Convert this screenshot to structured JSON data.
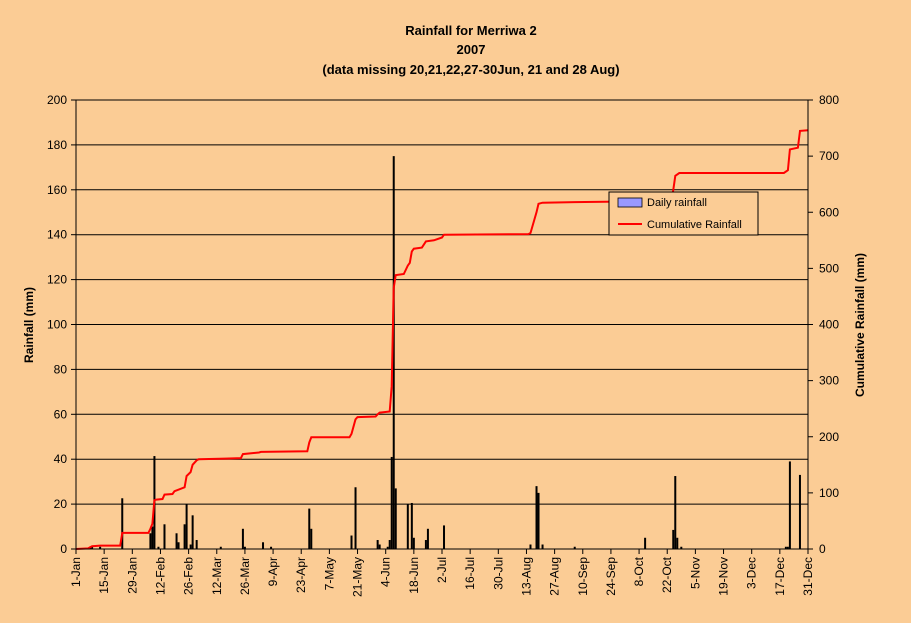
{
  "chart_data": {
    "type": "bar",
    "title_lines": [
      "Rainfall for Merriwa 2",
      "2007",
      "(data missing 20,21,22,27-30Jun, 21 and 28 Aug)"
    ],
    "ylabel": "Rainfall (mm)",
    "y2label": "Cumulative Rainfall (mm)",
    "ylim": [
      0,
      200
    ],
    "y2lim": [
      0,
      800
    ],
    "yticks": [
      0,
      20,
      40,
      60,
      80,
      100,
      120,
      140,
      160,
      180,
      200
    ],
    "y2ticks": [
      0,
      100,
      200,
      300,
      400,
      500,
      600,
      700,
      800
    ],
    "xlim_day": [
      1,
      365
    ],
    "xtick_labels": [
      "1-Jan",
      "15-Jan",
      "29-Jan",
      "12-Feb",
      "26-Feb",
      "12-Mar",
      "26-Mar",
      "9-Apr",
      "23-Apr",
      "7-May",
      "21-May",
      "4-Jun",
      "18-Jun",
      "2-Jul",
      "16-Jul",
      "30-Jul",
      "13-Aug",
      "27-Aug",
      "10-Sep",
      "24-Sep",
      "8-Oct",
      "22-Oct",
      "5-Nov",
      "19-Nov",
      "3-Dec",
      "17-Dec",
      "31-Dec"
    ],
    "grid": "horizontal",
    "legend_position": "right",
    "colors": {
      "background": "#fbcc95",
      "bars": "#000000",
      "line": "#ff0000",
      "legend_bar": "#9999ff",
      "grid": "#000000"
    },
    "series": [
      {
        "name": "Daily rainfall",
        "type": "bar",
        "points": [
          {
            "day": 8,
            "value": 1
          },
          {
            "day": 9,
            "value": 1
          },
          {
            "day": 13,
            "value": 1
          },
          {
            "day": 24,
            "value": 22.6
          },
          {
            "day": 38,
            "value": 7
          },
          {
            "day": 39,
            "value": 10
          },
          {
            "day": 40,
            "value": 41.4
          },
          {
            "day": 42,
            "value": 1
          },
          {
            "day": 45,
            "value": 11
          },
          {
            "day": 51,
            "value": 7
          },
          {
            "day": 52,
            "value": 3
          },
          {
            "day": 55,
            "value": 11
          },
          {
            "day": 56,
            "value": 20
          },
          {
            "day": 58,
            "value": 2
          },
          {
            "day": 59,
            "value": 15
          },
          {
            "day": 61,
            "value": 4
          },
          {
            "day": 73,
            "value": 1
          },
          {
            "day": 84,
            "value": 9
          },
          {
            "day": 85,
            "value": 1
          },
          {
            "day": 94,
            "value": 3
          },
          {
            "day": 98,
            "value": 1
          },
          {
            "day": 117,
            "value": 18
          },
          {
            "day": 118,
            "value": 9
          },
          {
            "day": 138,
            "value": 6
          },
          {
            "day": 140,
            "value": 27.5
          },
          {
            "day": 151,
            "value": 4
          },
          {
            "day": 152,
            "value": 2
          },
          {
            "day": 156,
            "value": 1
          },
          {
            "day": 157,
            "value": 4
          },
          {
            "day": 158,
            "value": 41
          },
          {
            "day": 159,
            "value": 175
          },
          {
            "day": 160,
            "value": 27
          },
          {
            "day": 166,
            "value": 20
          },
          {
            "day": 168,
            "value": 20.5
          },
          {
            "day": 169,
            "value": 5
          },
          {
            "day": 175,
            "value": 4
          },
          {
            "day": 176,
            "value": 9
          },
          {
            "day": 184,
            "value": 10.5
          },
          {
            "day": 227,
            "value": 2
          },
          {
            "day": 230,
            "value": 28
          },
          {
            "day": 231,
            "value": 25
          },
          {
            "day": 233,
            "value": 2
          },
          {
            "day": 249,
            "value": 1
          },
          {
            "day": 284,
            "value": 5
          },
          {
            "day": 298,
            "value": 8.5
          },
          {
            "day": 299,
            "value": 32.5
          },
          {
            "day": 300,
            "value": 5
          },
          {
            "day": 302,
            "value": 1
          },
          {
            "day": 354,
            "value": 1
          },
          {
            "day": 355,
            "value": 1
          },
          {
            "day": 356,
            "value": 39
          },
          {
            "day": 361,
            "value": 33
          }
        ]
      },
      {
        "name": "Cumulative Rainfall",
        "type": "line",
        "points": [
          {
            "day": 1,
            "value": 0
          },
          {
            "day": 7,
            "value": 1
          },
          {
            "day": 8,
            "value": 3
          },
          {
            "day": 9,
            "value": 5
          },
          {
            "day": 13,
            "value": 6
          },
          {
            "day": 23,
            "value": 6
          },
          {
            "day": 24,
            "value": 28.6
          },
          {
            "day": 37,
            "value": 28.6
          },
          {
            "day": 38,
            "value": 36
          },
          {
            "day": 39,
            "value": 45
          },
          {
            "day": 40,
            "value": 87
          },
          {
            "day": 41,
            "value": 88
          },
          {
            "day": 44,
            "value": 89
          },
          {
            "day": 45,
            "value": 97
          },
          {
            "day": 49,
            "value": 98
          },
          {
            "day": 50,
            "value": 103
          },
          {
            "day": 55,
            "value": 110
          },
          {
            "day": 56,
            "value": 130
          },
          {
            "day": 58,
            "value": 137
          },
          {
            "day": 59,
            "value": 150
          },
          {
            "day": 61,
            "value": 158
          },
          {
            "day": 62,
            "value": 160
          },
          {
            "day": 75,
            "value": 161
          },
          {
            "day": 83,
            "value": 162
          },
          {
            "day": 84,
            "value": 169
          },
          {
            "day": 92,
            "value": 172
          },
          {
            "day": 93,
            "value": 173
          },
          {
            "day": 116,
            "value": 174
          },
          {
            "day": 117,
            "value": 190
          },
          {
            "day": 118,
            "value": 199
          },
          {
            "day": 137,
            "value": 199
          },
          {
            "day": 138,
            "value": 205
          },
          {
            "day": 140,
            "value": 231
          },
          {
            "day": 141,
            "value": 235
          },
          {
            "day": 150,
            "value": 236
          },
          {
            "day": 151,
            "value": 240
          },
          {
            "day": 152,
            "value": 243
          },
          {
            "day": 157,
            "value": 245
          },
          {
            "day": 158,
            "value": 290
          },
          {
            "day": 159,
            "value": 465
          },
          {
            "day": 160,
            "value": 488
          },
          {
            "day": 164,
            "value": 490
          },
          {
            "day": 166,
            "value": 505
          },
          {
            "day": 167,
            "value": 510
          },
          {
            "day": 168,
            "value": 530
          },
          {
            "day": 169,
            "value": 535
          },
          {
            "day": 173,
            "value": 537
          },
          {
            "day": 175,
            "value": 548
          },
          {
            "day": 179,
            "value": 550
          },
          {
            "day": 183,
            "value": 555
          },
          {
            "day": 184,
            "value": 560
          },
          {
            "day": 226,
            "value": 561
          },
          {
            "day": 227,
            "value": 563
          },
          {
            "day": 230,
            "value": 600
          },
          {
            "day": 231,
            "value": 615
          },
          {
            "day": 233,
            "value": 617
          },
          {
            "day": 249,
            "value": 618
          },
          {
            "day": 297,
            "value": 620
          },
          {
            "day": 298,
            "value": 640
          },
          {
            "day": 299,
            "value": 665
          },
          {
            "day": 301,
            "value": 670
          },
          {
            "day": 353,
            "value": 670
          },
          {
            "day": 355,
            "value": 675
          },
          {
            "day": 356,
            "value": 712
          },
          {
            "day": 360,
            "value": 715
          },
          {
            "day": 361,
            "value": 745
          },
          {
            "day": 365,
            "value": 746
          }
        ]
      }
    ]
  }
}
